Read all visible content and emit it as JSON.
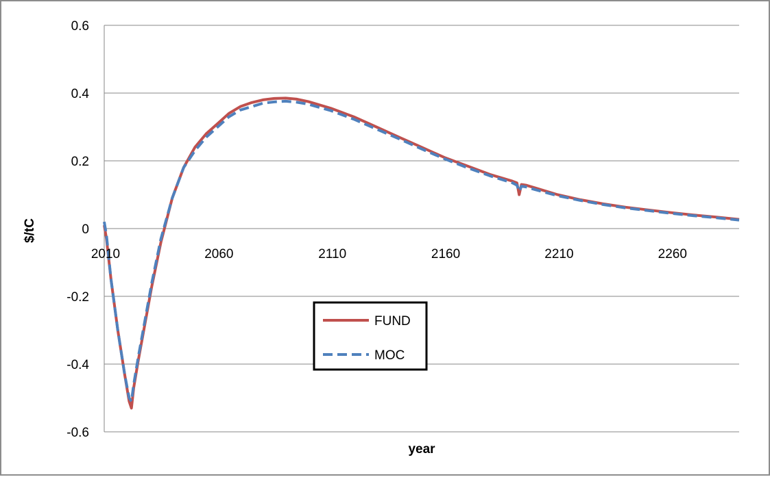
{
  "chart_data": {
    "type": "line",
    "title": "",
    "xlabel": "year",
    "ylabel": "$/tC",
    "xlim": [
      2010,
      2290
    ],
    "ylim": [
      -0.6,
      0.6
    ],
    "x_ticks": [
      "2010",
      "2060",
      "2110",
      "2160",
      "2210",
      "2260"
    ],
    "y_ticks": [
      "0.6",
      "0.4",
      "0.2",
      "0",
      "-0.2",
      "-0.4",
      "-0.6"
    ],
    "grid": true,
    "legend": {
      "position": "center",
      "entries": [
        "FUND",
        "MOC"
      ]
    },
    "series": [
      {
        "name": "FUND",
        "color": "#c0504d",
        "dash": "solid",
        "x": [
          2010,
          2011,
          2013,
          2016,
          2019,
          2021,
          2022,
          2023,
          2025,
          2028,
          2031,
          2035,
          2040,
          2045,
          2050,
          2055,
          2060,
          2065,
          2070,
          2075,
          2080,
          2085,
          2090,
          2095,
          2100,
          2110,
          2120,
          2130,
          2140,
          2150,
          2160,
          2170,
          2180,
          2190,
          2192,
          2193,
          2194,
          2196,
          2200,
          2210,
          2220,
          2230,
          2240,
          2250,
          2260,
          2270,
          2280,
          2290
        ],
        "y": [
          0.01,
          -0.03,
          -0.15,
          -0.3,
          -0.43,
          -0.51,
          -0.53,
          -0.47,
          -0.39,
          -0.28,
          -0.17,
          -0.04,
          0.09,
          0.18,
          0.24,
          0.28,
          0.31,
          0.34,
          0.36,
          0.372,
          0.38,
          0.384,
          0.385,
          0.382,
          0.375,
          0.355,
          0.33,
          0.3,
          0.27,
          0.24,
          0.21,
          0.185,
          0.16,
          0.14,
          0.135,
          0.1,
          0.13,
          0.128,
          0.12,
          0.1,
          0.085,
          0.073,
          0.063,
          0.055,
          0.047,
          0.04,
          0.034,
          0.027
        ]
      },
      {
        "name": "MOC",
        "color": "#4f81bd",
        "dash": "dashed",
        "x": [
          2010,
          2011,
          2013,
          2016,
          2019,
          2021,
          2022,
          2023,
          2025,
          2028,
          2031,
          2035,
          2040,
          2045,
          2050,
          2055,
          2060,
          2065,
          2070,
          2075,
          2080,
          2085,
          2090,
          2095,
          2100,
          2110,
          2120,
          2130,
          2140,
          2150,
          2160,
          2170,
          2180,
          2190,
          2192,
          2193,
          2194,
          2196,
          2200,
          2210,
          2220,
          2230,
          2240,
          2250,
          2260,
          2270,
          2280,
          2290
        ],
        "y": [
          0.02,
          -0.02,
          -0.15,
          -0.3,
          -0.43,
          -0.5,
          -0.51,
          -0.46,
          -0.38,
          -0.27,
          -0.16,
          -0.03,
          0.09,
          0.18,
          0.23,
          0.27,
          0.3,
          0.33,
          0.35,
          0.36,
          0.37,
          0.374,
          0.376,
          0.373,
          0.367,
          0.348,
          0.323,
          0.294,
          0.265,
          0.235,
          0.206,
          0.18,
          0.156,
          0.135,
          0.128,
          0.11,
          0.125,
          0.123,
          0.115,
          0.097,
          0.083,
          0.071,
          0.061,
          0.053,
          0.045,
          0.038,
          0.032,
          0.025
        ]
      }
    ]
  }
}
